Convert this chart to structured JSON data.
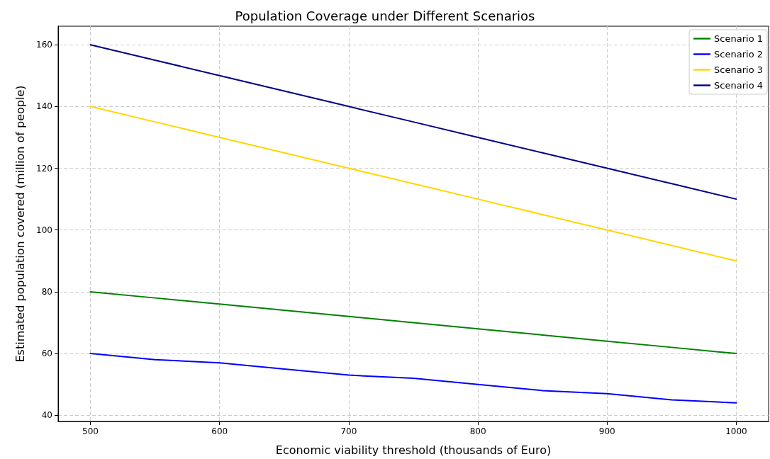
{
  "chart_data": {
    "type": "line",
    "title": "Population Coverage under Different Scenarios",
    "xlabel": "Economic viability threshold (thousands of Euro)",
    "ylabel": "Estimated population covered (million of people)",
    "x": [
      500,
      550,
      600,
      650,
      700,
      750,
      800,
      850,
      900,
      950,
      1000
    ],
    "series": [
      {
        "name": "Scenario 1",
        "color": "#008000",
        "values": [
          80,
          78,
          76,
          74,
          72,
          70,
          68,
          66,
          64,
          62,
          60
        ]
      },
      {
        "name": "Scenario 2",
        "color": "#0000ff",
        "values": [
          60,
          58,
          57,
          55,
          53,
          52,
          50,
          48,
          47,
          45,
          44
        ]
      },
      {
        "name": "Scenario 3",
        "color": "#ffd700",
        "values": [
          140,
          135,
          130,
          125,
          120,
          115,
          110,
          105,
          100,
          95,
          90
        ]
      },
      {
        "name": "Scenario 4",
        "color": "#00008b",
        "values": [
          160,
          155,
          150,
          145,
          140,
          135,
          130,
          125,
          120,
          115,
          110
        ]
      }
    ],
    "xlim": [
      475,
      1025
    ],
    "xticks": [
      500,
      600,
      700,
      800,
      900,
      1000
    ],
    "ylim": [
      38,
      166
    ],
    "yticks": [
      40,
      60,
      80,
      100,
      120,
      140,
      160
    ],
    "grid": true,
    "legend": "top right",
    "marker": "none",
    "line_style": "solid"
  }
}
